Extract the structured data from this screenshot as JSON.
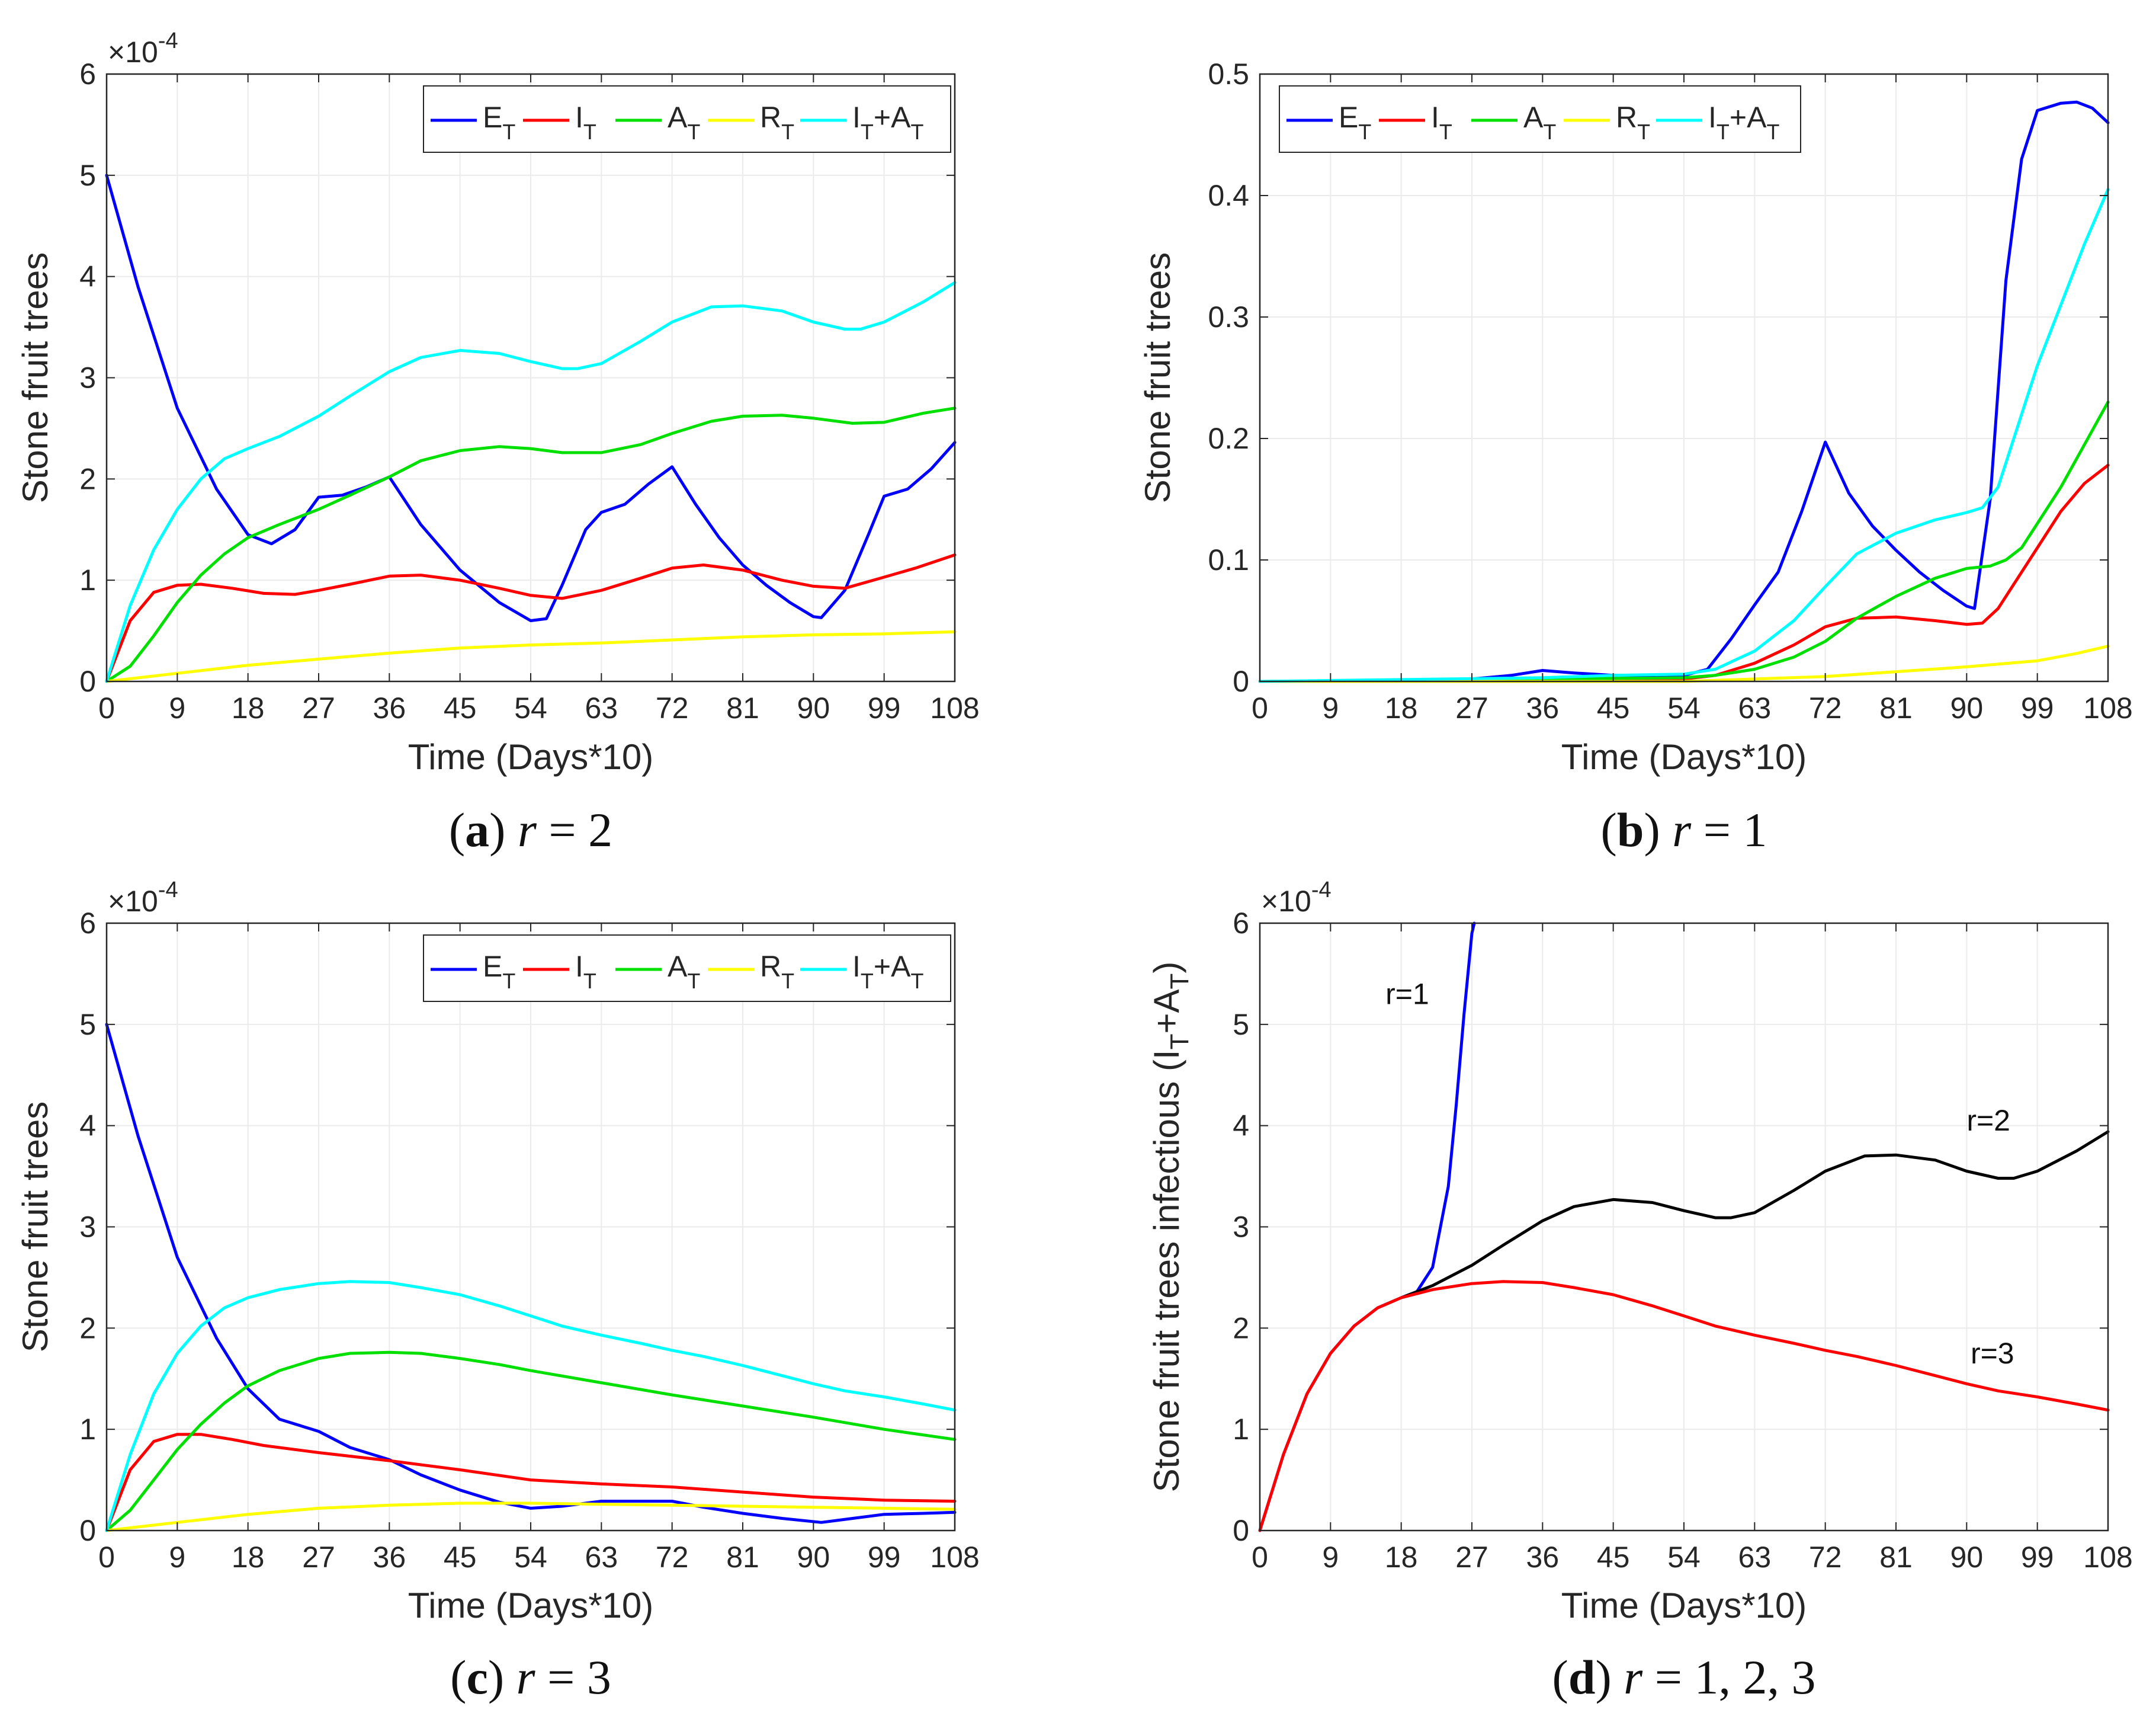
{
  "chart_data": [
    {
      "id": "a",
      "type": "line",
      "caption": {
        "label": "a",
        "expr": "r = 2"
      },
      "xlabel": "Time (Days*10)",
      "ylabel": "Stone fruit trees",
      "xlim": [
        0,
        108
      ],
      "ylim": [
        0,
        6
      ],
      "y_exponent": "×10^-4",
      "xticks": [
        0,
        9,
        18,
        27,
        36,
        45,
        54,
        63,
        72,
        81,
        90,
        99,
        108
      ],
      "yticks": [
        0,
        1,
        2,
        3,
        4,
        5,
        6
      ],
      "grid": true,
      "legend": {
        "placement": "top-right",
        "orientation": "horizontal"
      },
      "series": [
        {
          "name": "E",
          "sub": "T",
          "color": "#0000ff",
          "x": [
            0,
            4,
            9,
            14,
            18,
            21,
            24,
            27,
            30,
            33,
            36,
            40,
            45,
            50,
            54,
            56,
            58,
            61,
            63,
            66,
            69,
            72,
            75,
            78,
            81,
            84,
            87,
            90,
            91,
            94,
            97,
            99,
            102,
            105,
            108
          ],
          "y": [
            5.0,
            3.9,
            2.7,
            1.9,
            1.45,
            1.36,
            1.5,
            1.82,
            1.84,
            1.92,
            2.02,
            1.55,
            1.1,
            0.78,
            0.6,
            0.62,
            0.95,
            1.5,
            1.67,
            1.75,
            1.95,
            2.12,
            1.75,
            1.42,
            1.15,
            0.95,
            0.78,
            0.64,
            0.63,
            0.9,
            1.45,
            1.83,
            1.9,
            2.1,
            2.36
          ]
        },
        {
          "name": "I",
          "sub": "T",
          "color": "#ff0000",
          "x": [
            0,
            3,
            6,
            9,
            12,
            16,
            20,
            24,
            27,
            31,
            36,
            40,
            45,
            50,
            54,
            58,
            63,
            68,
            72,
            76,
            81,
            86,
            90,
            94,
            99,
            103,
            108
          ],
          "y": [
            0,
            0.6,
            0.88,
            0.95,
            0.96,
            0.92,
            0.87,
            0.86,
            0.9,
            0.96,
            1.04,
            1.05,
            1.0,
            0.92,
            0.85,
            0.82,
            0.9,
            1.02,
            1.12,
            1.15,
            1.1,
            1.0,
            0.94,
            0.92,
            1.03,
            1.12,
            1.25
          ]
        },
        {
          "name": "A",
          "sub": "T",
          "color": "#00e000",
          "x": [
            0,
            3,
            6,
            9,
            12,
            15,
            18,
            22,
            27,
            31,
            36,
            40,
            45,
            50,
            54,
            58,
            63,
            68,
            72,
            77,
            81,
            86,
            90,
            95,
            99,
            104,
            108
          ],
          "y": [
            0,
            0.15,
            0.45,
            0.78,
            1.05,
            1.26,
            1.42,
            1.55,
            1.7,
            1.84,
            2.02,
            2.18,
            2.28,
            2.32,
            2.3,
            2.26,
            2.26,
            2.34,
            2.45,
            2.57,
            2.62,
            2.63,
            2.6,
            2.55,
            2.56,
            2.65,
            2.7
          ]
        },
        {
          "name": "R",
          "sub": "T",
          "color": "#ffff00",
          "x": [
            0,
            9,
            18,
            27,
            36,
            45,
            54,
            63,
            72,
            81,
            90,
            99,
            108
          ],
          "y": [
            0,
            0.08,
            0.16,
            0.22,
            0.28,
            0.33,
            0.36,
            0.38,
            0.41,
            0.44,
            0.46,
            0.47,
            0.49
          ]
        },
        {
          "name": "I+A",
          "sub": "T",
          "color": "#00ffff",
          "x": [
            0,
            3,
            6,
            9,
            12,
            15,
            18,
            22,
            27,
            31,
            36,
            40,
            45,
            50,
            54,
            58,
            60,
            63,
            68,
            72,
            77,
            81,
            86,
            90,
            94,
            96,
            99,
            104,
            108
          ],
          "y": [
            0,
            0.75,
            1.3,
            1.7,
            2.0,
            2.2,
            2.3,
            2.42,
            2.62,
            2.82,
            3.06,
            3.2,
            3.27,
            3.24,
            3.16,
            3.09,
            3.09,
            3.14,
            3.36,
            3.55,
            3.7,
            3.71,
            3.66,
            3.55,
            3.48,
            3.48,
            3.55,
            3.75,
            3.94
          ]
        }
      ]
    },
    {
      "id": "b",
      "type": "line",
      "caption": {
        "label": "b",
        "expr": "r = 1"
      },
      "xlabel": "Time (Days*10)",
      "ylabel": "Stone fruit trees",
      "xlim": [
        0,
        108
      ],
      "ylim": [
        0,
        0.5
      ],
      "xticks": [
        0,
        9,
        18,
        27,
        36,
        45,
        54,
        63,
        72,
        81,
        90,
        99,
        108
      ],
      "yticks": [
        0,
        0.1,
        0.2,
        0.3,
        0.4,
        0.5
      ],
      "grid": true,
      "legend": {
        "placement": "top-left",
        "orientation": "horizontal"
      },
      "series": [
        {
          "name": "E",
          "sub": "T",
          "color": "#0000ff",
          "x": [
            0,
            18,
            27,
            32,
            36,
            40,
            45,
            50,
            54,
            57,
            60,
            63,
            66,
            69,
            72,
            75,
            78,
            81,
            84,
            87,
            90,
            91,
            93,
            95,
            97,
            99,
            100,
            102,
            104,
            106,
            108
          ],
          "y": [
            0,
            0,
            0.002,
            0.005,
            0.009,
            0.007,
            0.005,
            0.005,
            0.005,
            0.01,
            0.035,
            0.063,
            0.09,
            0.14,
            0.197,
            0.155,
            0.128,
            0.108,
            0.09,
            0.075,
            0.062,
            0.06,
            0.15,
            0.33,
            0.43,
            0.47,
            0.472,
            0.476,
            0.477,
            0.472,
            0.46
          ]
        },
        {
          "name": "I",
          "sub": "T",
          "color": "#ff0000",
          "x": [
            0,
            36,
            54,
            58,
            63,
            68,
            72,
            76,
            81,
            86,
            90,
            92,
            94,
            96,
            99,
            102,
            105,
            108
          ],
          "y": [
            0,
            0.001,
            0.002,
            0.005,
            0.015,
            0.03,
            0.045,
            0.052,
            0.053,
            0.05,
            0.047,
            0.048,
            0.06,
            0.08,
            0.11,
            0.14,
            0.163,
            0.178
          ]
        },
        {
          "name": "A",
          "sub": "T",
          "color": "#00e000",
          "x": [
            0,
            36,
            54,
            58,
            63,
            68,
            72,
            76,
            81,
            86,
            90,
            93,
            95,
            97,
            99,
            102,
            105,
            108
          ],
          "y": [
            0,
            0.002,
            0.003,
            0.005,
            0.01,
            0.02,
            0.033,
            0.052,
            0.07,
            0.085,
            0.093,
            0.095,
            0.1,
            0.11,
            0.13,
            0.16,
            0.195,
            0.23
          ]
        },
        {
          "name": "R",
          "sub": "T",
          "color": "#ffff00",
          "x": [
            0,
            54,
            63,
            72,
            81,
            90,
            99,
            104,
            108
          ],
          "y": [
            0,
            0,
            0.002,
            0.004,
            0.008,
            0.012,
            0.017,
            0.023,
            0.029
          ]
        },
        {
          "name": "I+A",
          "sub": "T",
          "color": "#00ffff",
          "x": [
            0,
            36,
            45,
            54,
            58,
            63,
            68,
            72,
            76,
            81,
            86,
            90,
            92,
            94,
            96,
            99,
            102,
            105,
            108
          ],
          "y": [
            0,
            0.003,
            0.005,
            0.006,
            0.01,
            0.025,
            0.05,
            0.078,
            0.105,
            0.122,
            0.133,
            0.139,
            0.143,
            0.16,
            0.2,
            0.26,
            0.31,
            0.36,
            0.405
          ]
        }
      ]
    },
    {
      "id": "c",
      "type": "line",
      "caption": {
        "label": "c",
        "expr": "r = 3"
      },
      "xlabel": "Time (Days*10)",
      "ylabel": "Stone fruit trees",
      "xlim": [
        0,
        108
      ],
      "ylim": [
        0,
        6
      ],
      "y_exponent": "×10^-4",
      "xticks": [
        0,
        9,
        18,
        27,
        36,
        45,
        54,
        63,
        72,
        81,
        90,
        99,
        108
      ],
      "yticks": [
        0,
        1,
        2,
        3,
        4,
        5,
        6
      ],
      "grid": true,
      "legend": {
        "placement": "top-right",
        "orientation": "horizontal"
      },
      "series": [
        {
          "name": "E",
          "sub": "T",
          "color": "#0000ff",
          "x": [
            0,
            4,
            9,
            14,
            18,
            22,
            27,
            31,
            36,
            40,
            45,
            50,
            54,
            58,
            63,
            68,
            72,
            76,
            81,
            86,
            91,
            95,
            99,
            104,
            108
          ],
          "y": [
            5.0,
            3.9,
            2.7,
            1.9,
            1.4,
            1.1,
            0.98,
            0.82,
            0.7,
            0.55,
            0.4,
            0.28,
            0.22,
            0.24,
            0.29,
            0.29,
            0.29,
            0.23,
            0.17,
            0.12,
            0.08,
            0.12,
            0.16,
            0.17,
            0.18
          ]
        },
        {
          "name": "I",
          "sub": "T",
          "color": "#ff0000",
          "x": [
            0,
            3,
            6,
            9,
            12,
            16,
            20,
            27,
            36,
            45,
            54,
            63,
            72,
            81,
            90,
            99,
            108
          ],
          "y": [
            0,
            0.6,
            0.88,
            0.95,
            0.95,
            0.9,
            0.84,
            0.77,
            0.69,
            0.6,
            0.5,
            0.46,
            0.43,
            0.38,
            0.33,
            0.3,
            0.29
          ]
        },
        {
          "name": "A",
          "sub": "T",
          "color": "#00e000",
          "x": [
            0,
            3,
            6,
            9,
            12,
            15,
            18,
            22,
            27,
            31,
            36,
            40,
            45,
            50,
            54,
            63,
            72,
            81,
            90,
            99,
            108
          ],
          "y": [
            0,
            0.2,
            0.5,
            0.8,
            1.05,
            1.26,
            1.43,
            1.58,
            1.7,
            1.75,
            1.76,
            1.75,
            1.7,
            1.64,
            1.58,
            1.46,
            1.34,
            1.23,
            1.12,
            1.0,
            0.9
          ]
        },
        {
          "name": "R",
          "sub": "T",
          "color": "#ffff00",
          "x": [
            0,
            9,
            18,
            27,
            36,
            45,
            54,
            63,
            72,
            81,
            90,
            99,
            108
          ],
          "y": [
            0,
            0.08,
            0.16,
            0.22,
            0.25,
            0.27,
            0.27,
            0.26,
            0.25,
            0.24,
            0.23,
            0.22,
            0.21
          ]
        },
        {
          "name": "I+A",
          "sub": "T",
          "color": "#00ffff",
          "x": [
            0,
            3,
            6,
            9,
            12,
            15,
            18,
            22,
            27,
            31,
            36,
            40,
            45,
            50,
            54,
            58,
            63,
            68,
            72,
            76,
            81,
            86,
            90,
            94,
            99,
            104,
            108
          ],
          "y": [
            0,
            0.75,
            1.35,
            1.75,
            2.02,
            2.2,
            2.3,
            2.38,
            2.44,
            2.46,
            2.45,
            2.4,
            2.33,
            2.22,
            2.12,
            2.02,
            1.93,
            1.85,
            1.78,
            1.72,
            1.63,
            1.53,
            1.45,
            1.38,
            1.32,
            1.25,
            1.19
          ]
        }
      ]
    },
    {
      "id": "d",
      "type": "line",
      "caption": {
        "label": "d",
        "expr": "r = 1, 2, 3"
      },
      "xlabel": "Time (Days*10)",
      "ylabel": "Stone fruit trees infectious (I_T+A_T)",
      "xlim": [
        0,
        108
      ],
      "ylim": [
        0,
        6
      ],
      "y_exponent": "×10^-4",
      "xticks": [
        0,
        9,
        18,
        27,
        36,
        45,
        54,
        63,
        72,
        81,
        90,
        99,
        108
      ],
      "yticks": [
        0,
        1,
        2,
        3,
        4,
        5,
        6
      ],
      "grid": true,
      "series": [
        {
          "name": "r=1",
          "color": "#0000ff",
          "x": [
            0,
            3,
            6,
            9,
            12,
            15,
            18,
            20,
            22,
            24,
            25,
            26,
            27,
            27.3
          ],
          "y": [
            0,
            0.75,
            1.35,
            1.75,
            2.02,
            2.2,
            2.3,
            2.36,
            2.6,
            3.4,
            4.2,
            5.1,
            5.9,
            6.0
          ]
        },
        {
          "name": "r=2",
          "color": "#000000",
          "x": [
            18,
            22,
            27,
            31,
            36,
            40,
            45,
            50,
            54,
            58,
            60,
            63,
            68,
            72,
            77,
            81,
            86,
            90,
            94,
            96,
            99,
            104,
            108
          ],
          "y": [
            2.3,
            2.42,
            2.62,
            2.82,
            3.06,
            3.2,
            3.27,
            3.24,
            3.16,
            3.09,
            3.09,
            3.14,
            3.36,
            3.55,
            3.7,
            3.71,
            3.66,
            3.55,
            3.48,
            3.48,
            3.55,
            3.75,
            3.94
          ]
        },
        {
          "name": "r=3",
          "color": "#ff0000",
          "x": [
            0,
            3,
            6,
            9,
            12,
            15,
            18,
            22,
            27,
            31,
            36,
            40,
            45,
            50,
            54,
            58,
            63,
            68,
            72,
            76,
            81,
            86,
            90,
            94,
            99,
            104,
            108
          ],
          "y": [
            0,
            0.75,
            1.35,
            1.75,
            2.02,
            2.2,
            2.3,
            2.38,
            2.44,
            2.46,
            2.45,
            2.4,
            2.33,
            2.22,
            2.12,
            2.02,
            1.93,
            1.85,
            1.78,
            1.72,
            1.63,
            1.53,
            1.45,
            1.38,
            1.32,
            1.25,
            1.19
          ]
        }
      ],
      "annotations": [
        {
          "text": "r=1",
          "x": 16,
          "y": 5.2
        },
        {
          "text": "r=2",
          "x": 90,
          "y": 3.95
        },
        {
          "text": "r=3",
          "x": 90.5,
          "y": 1.65
        }
      ]
    }
  ]
}
